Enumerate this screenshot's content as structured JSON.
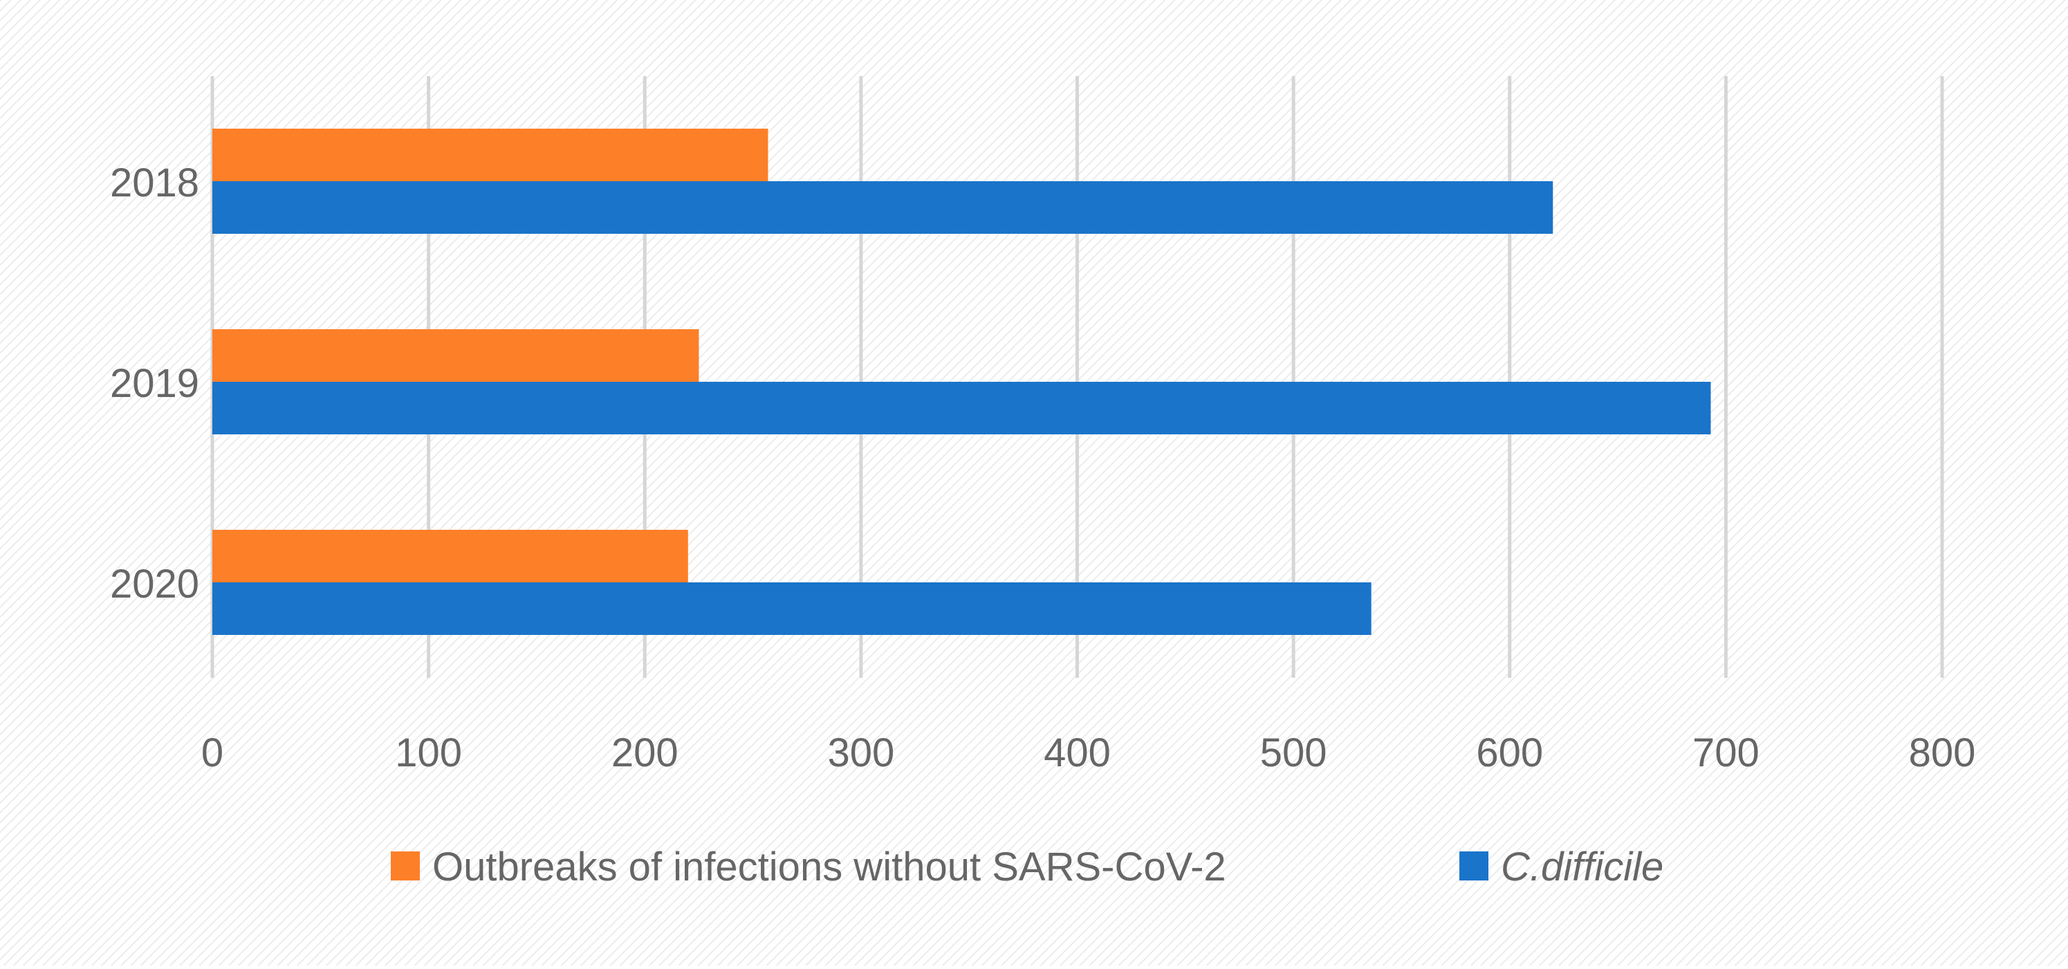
{
  "chart_data": {
    "type": "bar",
    "orientation": "horizontal",
    "categories": [
      "2018",
      "2019",
      "2020"
    ],
    "series": [
      {
        "name": "Outbreaks of infections without SARS-CoV-2",
        "values": [
          257,
          225,
          220
        ],
        "color": "#fd7f28"
      },
      {
        "name": "C.difficile",
        "values": [
          620,
          693,
          536
        ],
        "color": "#1a74ca"
      }
    ],
    "xlim": [
      0,
      800
    ],
    "x_ticks": [
      "0",
      "100",
      "200",
      "300",
      "400",
      "500",
      "600",
      "700",
      "800"
    ],
    "grid": "vertical",
    "legend_position": "bottom",
    "title": "",
    "xlabel": "",
    "ylabel": ""
  }
}
